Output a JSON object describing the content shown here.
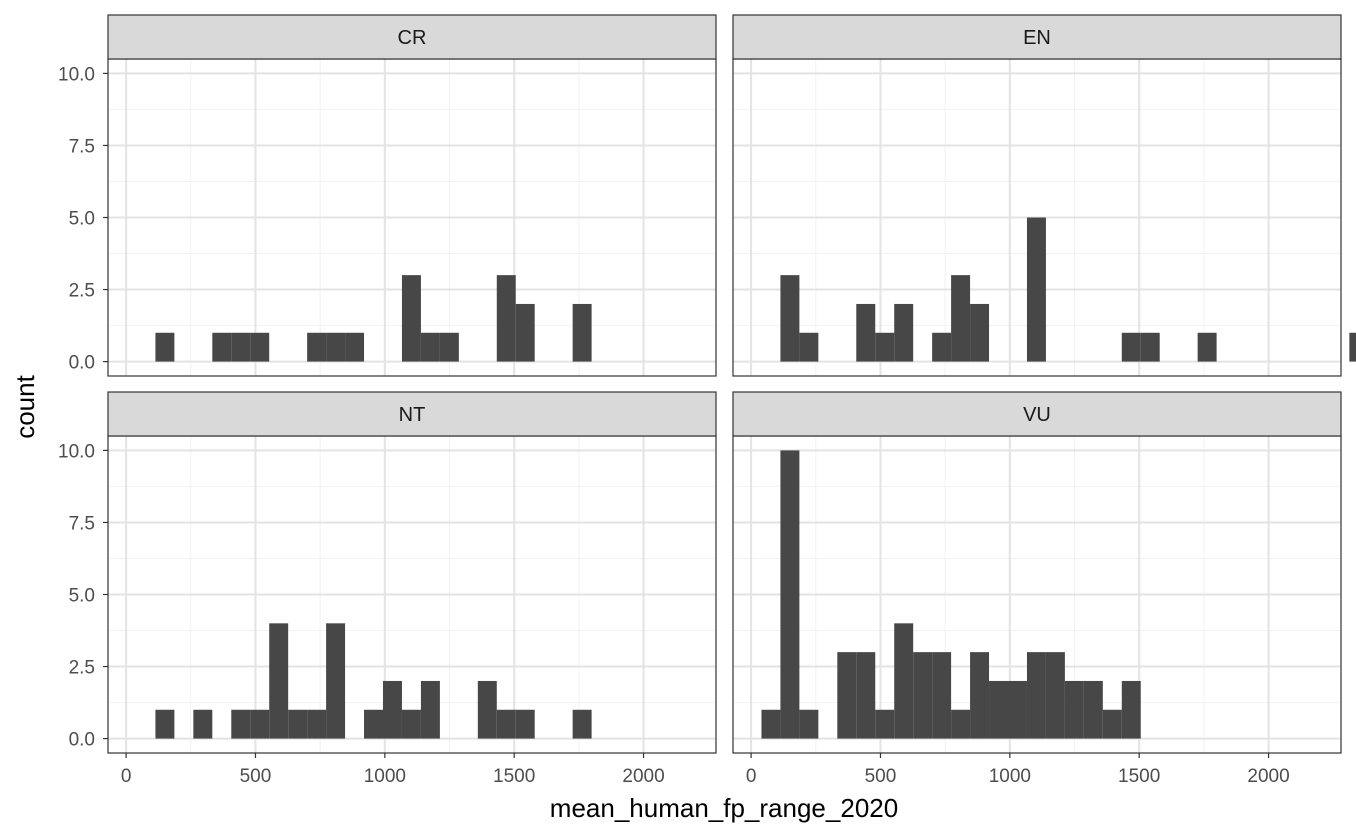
{
  "chart_data": {
    "type": "bar",
    "subtype": "faceted-histogram",
    "xlabel": "mean_human_fp_range_2020",
    "ylabel": "count",
    "xlim": [
      -70,
      2280
    ],
    "ylim": [
      -0.5,
      10.5
    ],
    "xticks": [
      0,
      500,
      1000,
      1500,
      2000
    ],
    "xtick_labels": [
      "0",
      "500",
      "1000",
      "1500",
      "2000"
    ],
    "yticks": [
      0,
      2.5,
      5,
      7.5,
      10
    ],
    "ytick_labels": [
      "0.0",
      "2.5",
      "5.0",
      "7.5",
      "10.0"
    ],
    "x_minor": [
      250,
      750,
      1250,
      1750
    ],
    "y_minor": [
      1.25,
      3.75,
      6.25,
      8.75
    ],
    "bin_start": 40,
    "bin_width": 73.3,
    "grid": true,
    "bar_color": "#474747",
    "strip_fill": "#d9d9d9",
    "facets": [
      {
        "name": "CR",
        "counts": [
          0,
          1,
          0,
          0,
          1,
          1,
          1,
          0,
          0,
          1,
          1,
          1,
          0,
          0,
          3,
          1,
          1,
          0,
          0,
          3,
          2,
          0,
          0,
          2,
          0,
          0,
          0,
          0,
          0,
          0,
          0,
          0
        ]
      },
      {
        "name": "EN",
        "counts": [
          0,
          3,
          1,
          0,
          0,
          2,
          1,
          2,
          0,
          1,
          3,
          2,
          0,
          0,
          5,
          0,
          0,
          0,
          0,
          1,
          1,
          0,
          0,
          1,
          0,
          0,
          0,
          0,
          0,
          0,
          0,
          1
        ]
      },
      {
        "name": "NT",
        "counts": [
          0,
          1,
          0,
          1,
          0,
          1,
          1,
          4,
          1,
          1,
          4,
          0,
          1,
          2,
          1,
          2,
          0,
          0,
          2,
          1,
          1,
          0,
          0,
          1,
          0,
          0,
          0,
          0,
          0,
          0,
          0,
          0
        ]
      },
      {
        "name": "VU",
        "counts": [
          1,
          10,
          1,
          0,
          3,
          3,
          1,
          4,
          3,
          3,
          1,
          3,
          2,
          2,
          3,
          3,
          2,
          2,
          1,
          2,
          0,
          0,
          0,
          0,
          0,
          0,
          0,
          0,
          0,
          0,
          0,
          0
        ]
      }
    ]
  }
}
